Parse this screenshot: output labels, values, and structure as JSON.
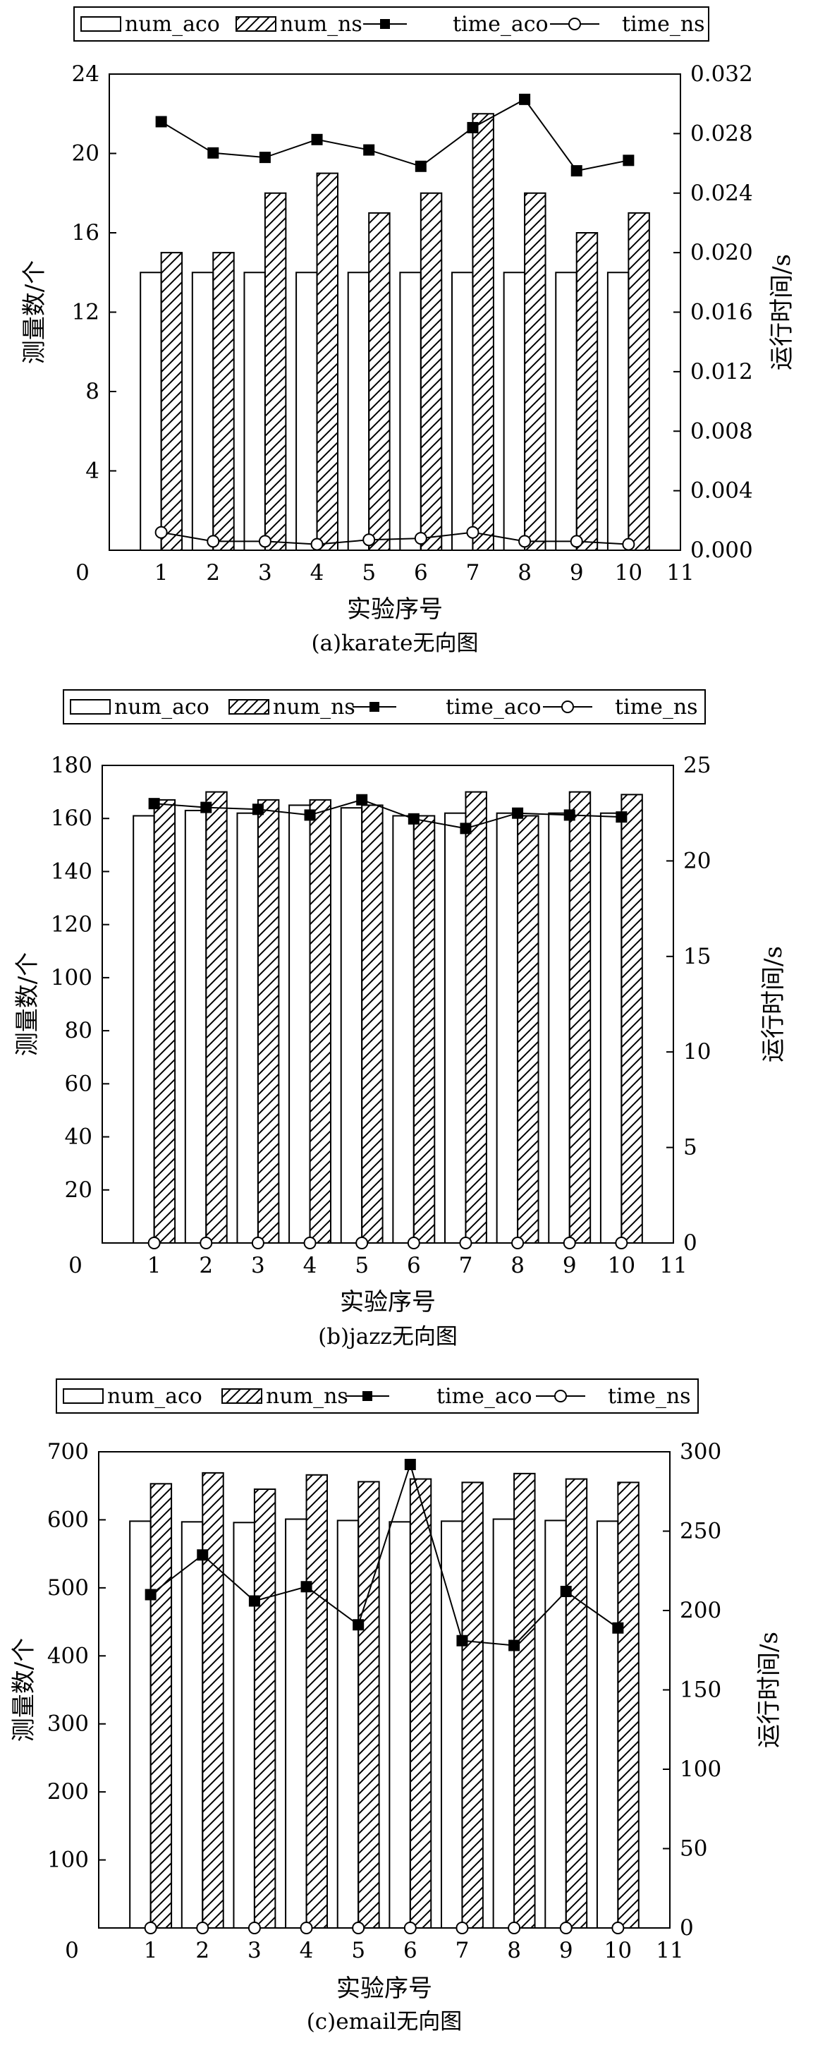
{
  "legend_labels": [
    "num_aco",
    "num_ns",
    "time_aco",
    "time_ns"
  ],
  "chart_data": [
    {
      "type": "bar",
      "subtitle": "(a)karate无向图",
      "xlabel": "实验序号",
      "ylabel": "测量数/个",
      "y2label": "运行时间/s",
      "x_ticks": [
        "0",
        "1",
        "2",
        "3",
        "4",
        "5",
        "6",
        "7",
        "8",
        "9",
        "10",
        "11"
      ],
      "xlim": [
        0,
        11
      ],
      "ylim": [
        0,
        24
      ],
      "y_ticks": [
        "4",
        "8",
        "12",
        "16",
        "20",
        "24"
      ],
      "y2lim": [
        0,
        0.032
      ],
      "y2_ticks": [
        "0.000",
        "0.004",
        "0.008",
        "0.012",
        "0.016",
        "0.020",
        "0.024",
        "0.028",
        "0.032"
      ],
      "categories": [
        1,
        2,
        3,
        4,
        5,
        6,
        7,
        8,
        9,
        10
      ],
      "series": [
        {
          "name": "num_aco",
          "kind": "bar",
          "axis": "left",
          "values": [
            14,
            14,
            14,
            14,
            14,
            14,
            14,
            14,
            14,
            14
          ]
        },
        {
          "name": "num_ns",
          "kind": "bar",
          "axis": "left",
          "values": [
            15,
            15,
            18,
            19,
            17,
            18,
            22,
            18,
            16,
            17
          ]
        },
        {
          "name": "time_aco",
          "kind": "line",
          "axis": "right",
          "values": [
            0.0288,
            0.0267,
            0.0264,
            0.0276,
            0.0269,
            0.0258,
            0.0284,
            0.0303,
            0.0255,
            0.0262
          ]
        },
        {
          "name": "time_ns",
          "kind": "line",
          "axis": "right",
          "values": [
            0.0012,
            0.0006,
            0.0006,
            0.0004,
            0.0007,
            0.0008,
            0.0012,
            0.0006,
            0.0006,
            0.0004
          ]
        }
      ],
      "legend": "top"
    },
    {
      "type": "bar",
      "subtitle": "(b)jazz无向图",
      "xlabel": "实验序号",
      "ylabel": "测量数/个",
      "y2label": "运行时间/s",
      "x_ticks": [
        "0",
        "1",
        "2",
        "3",
        "4",
        "5",
        "6",
        "7",
        "8",
        "9",
        "10",
        "11"
      ],
      "xlim": [
        0,
        11
      ],
      "ylim": [
        0,
        180
      ],
      "y_ticks": [
        "20",
        "40",
        "60",
        "80",
        "100",
        "120",
        "140",
        "160",
        "180"
      ],
      "y2lim": [
        0,
        25
      ],
      "y2_ticks": [
        "0",
        "5",
        "10",
        "15",
        "20",
        "25"
      ],
      "categories": [
        1,
        2,
        3,
        4,
        5,
        6,
        7,
        8,
        9,
        10
      ],
      "series": [
        {
          "name": "num_aco",
          "kind": "bar",
          "axis": "left",
          "values": [
            161,
            163,
            162,
            165,
            164,
            161,
            162,
            162,
            162,
            162
          ]
        },
        {
          "name": "num_ns",
          "kind": "bar",
          "axis": "left",
          "values": [
            167,
            170,
            167,
            167,
            165,
            161,
            170,
            161,
            170,
            169
          ]
        },
        {
          "name": "time_aco",
          "kind": "line",
          "axis": "right",
          "values": [
            23.0,
            22.8,
            22.7,
            22.4,
            23.2,
            22.2,
            21.7,
            22.5,
            22.4,
            22.3
          ]
        },
        {
          "name": "time_ns",
          "kind": "line",
          "axis": "right",
          "values": [
            0,
            0,
            0,
            0,
            0,
            0,
            0,
            0,
            0,
            0
          ]
        }
      ],
      "legend": "top"
    },
    {
      "type": "bar",
      "subtitle": "(c)email无向图",
      "xlabel": "实验序号",
      "ylabel": "测量数/个",
      "y2label": "运行时间/s",
      "x_ticks": [
        "0",
        "1",
        "2",
        "3",
        "4",
        "5",
        "6",
        "7",
        "8",
        "9",
        "10",
        "11"
      ],
      "xlim": [
        0,
        11
      ],
      "ylim": [
        0,
        700
      ],
      "y_ticks": [
        "100",
        "200",
        "300",
        "400",
        "500",
        "600",
        "700"
      ],
      "y2lim": [
        0,
        300
      ],
      "y2_ticks": [
        "0",
        "50",
        "100",
        "150",
        "200",
        "250",
        "300"
      ],
      "categories": [
        1,
        2,
        3,
        4,
        5,
        6,
        7,
        8,
        9,
        10
      ],
      "series": [
        {
          "name": "num_aco",
          "kind": "bar",
          "axis": "left",
          "values": [
            598,
            597,
            596,
            601,
            599,
            597,
            598,
            601,
            599,
            598
          ]
        },
        {
          "name": "num_ns",
          "kind": "bar",
          "axis": "left",
          "values": [
            653,
            669,
            645,
            666,
            656,
            660,
            655,
            668,
            660,
            655
          ]
        },
        {
          "name": "time_aco",
          "kind": "line",
          "axis": "right",
          "values": [
            210,
            235,
            206,
            215,
            191,
            292,
            181,
            178,
            212,
            189
          ]
        },
        {
          "name": "time_ns",
          "kind": "line",
          "axis": "right",
          "values": [
            0,
            0,
            0,
            0,
            0,
            0,
            0,
            0,
            0,
            0
          ]
        }
      ],
      "legend": "top"
    }
  ]
}
